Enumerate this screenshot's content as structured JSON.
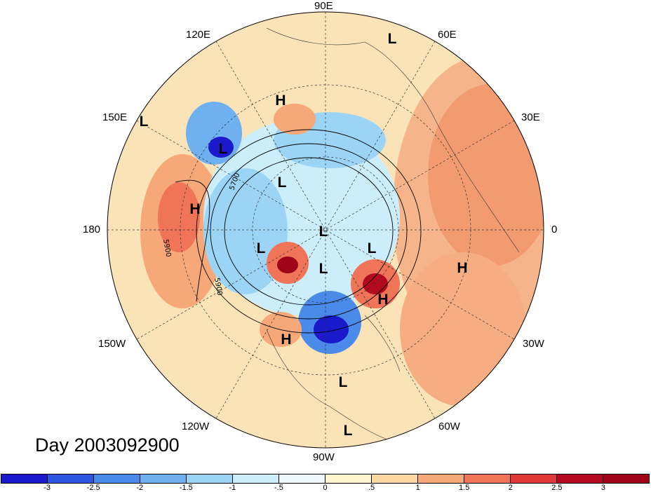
{
  "title": "Day 2003092900",
  "lon_labels": {
    "top": "90E",
    "top_left": "120E",
    "top_right": "60E",
    "upper_left": "150E",
    "upper_right": "30E",
    "left": "180",
    "right": "0",
    "lower_left": "150W",
    "lower_right": "30W",
    "bottom_left": "120W",
    "bottom_right": "60W",
    "bottom": "90W"
  },
  "contour_labels": [
    "5700",
    "5900",
    "5900"
  ],
  "pressure_centers": [
    {
      "label": "L"
    },
    {
      "label": "H"
    },
    {
      "label": "L"
    },
    {
      "label": "L"
    },
    {
      "label": "L"
    },
    {
      "label": "H"
    },
    {
      "label": "L"
    },
    {
      "label": "L"
    },
    {
      "label": "L"
    },
    {
      "label": "L"
    },
    {
      "label": "H"
    },
    {
      "label": "H"
    },
    {
      "label": "H"
    },
    {
      "label": "L"
    },
    {
      "label": "L"
    }
  ],
  "colorbar": {
    "ticks": [
      "-3",
      "-2.5",
      "-2",
      "-1.5",
      "-1",
      "-.5",
      "0",
      ".5",
      "1",
      "1.5",
      "2",
      "2.5",
      "3"
    ],
    "colors": [
      "#1a1acc",
      "#2c56e0",
      "#4a8ae8",
      "#6eb0f0",
      "#9cd4f5",
      "#cceefa",
      "#eefaff",
      "#fff6d0",
      "#fbd8a0",
      "#f6a878",
      "#ef7458",
      "#e03a38",
      "#b40a20",
      "#a00418"
    ]
  }
}
